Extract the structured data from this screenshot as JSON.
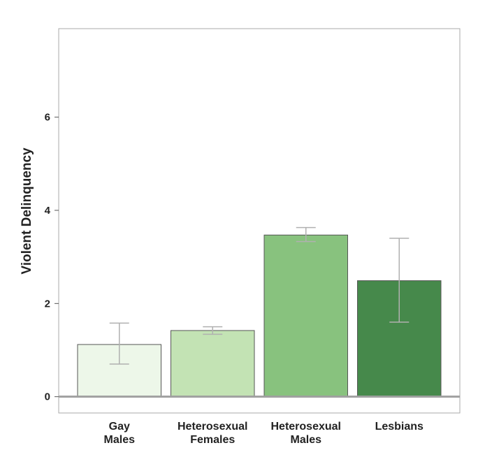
{
  "chart_data": {
    "type": "bar",
    "categories": [
      [
        "Gay",
        "Males"
      ],
      [
        "Heterosexual",
        "Females"
      ],
      [
        "Heterosexual",
        "Males"
      ],
      [
        "Lesbians"
      ]
    ],
    "values": [
      1.12,
      1.42,
      3.47,
      2.49
    ],
    "error_low": [
      0.7,
      1.34,
      3.33,
      1.6
    ],
    "error_high": [
      1.58,
      1.5,
      3.63,
      3.4
    ],
    "bar_colors": [
      "#edf7e9",
      "#c3e3b4",
      "#88c27e",
      "#46894b"
    ],
    "title": "",
    "xlabel": "",
    "ylabel": "Violent Delinquency",
    "ylim": [
      -0.35,
      7.9
    ],
    "yticks": [
      0,
      2,
      4,
      6
    ],
    "grid": false,
    "zero_line_color": "#a0a0a0",
    "errorbar_color": "#b0b0b0"
  }
}
